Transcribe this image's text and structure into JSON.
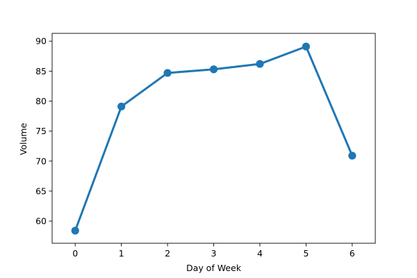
{
  "chart_data": {
    "type": "line",
    "title": "",
    "xlabel": "Day of Week",
    "ylabel": "Volume",
    "x": [
      0,
      1,
      2,
      3,
      4,
      5,
      6
    ],
    "series": [
      {
        "values": [
          58.4,
          79.1,
          84.7,
          85.3,
          86.2,
          89.1,
          70.9
        ],
        "error": [
          0.25,
          0.55,
          0.55,
          0.55,
          0.45,
          0.45,
          0.25
        ],
        "color": "#1f77b4"
      }
    ],
    "xlim": [
      -0.5,
      6.5
    ],
    "ylim": [
      56.3,
      91.3
    ],
    "xticks": [
      "0",
      "1",
      "2",
      "3",
      "4",
      "5",
      "6"
    ],
    "yticks": [
      "60",
      "65",
      "70",
      "75",
      "80",
      "85",
      "90"
    ],
    "grid": false,
    "legend": "none"
  }
}
